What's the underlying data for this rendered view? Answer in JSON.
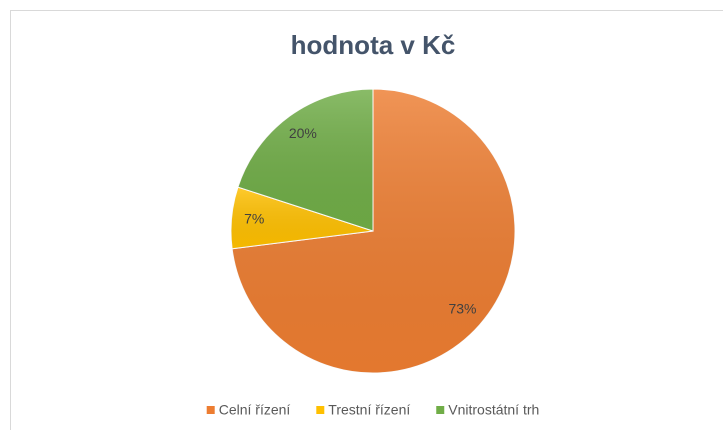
{
  "chart_data": {
    "type": "pie",
    "title": "hodnota v Kč",
    "categories": [
      "Celní řízení",
      "Trestní řízení",
      "Vnitrostátní trh"
    ],
    "values": [
      73,
      7,
      20
    ],
    "value_labels": [
      "73%",
      "7%",
      "20%"
    ],
    "colors": [
      "#ed7d31",
      "#ffc000",
      "#70ad47"
    ],
    "legend": "bottom"
  }
}
